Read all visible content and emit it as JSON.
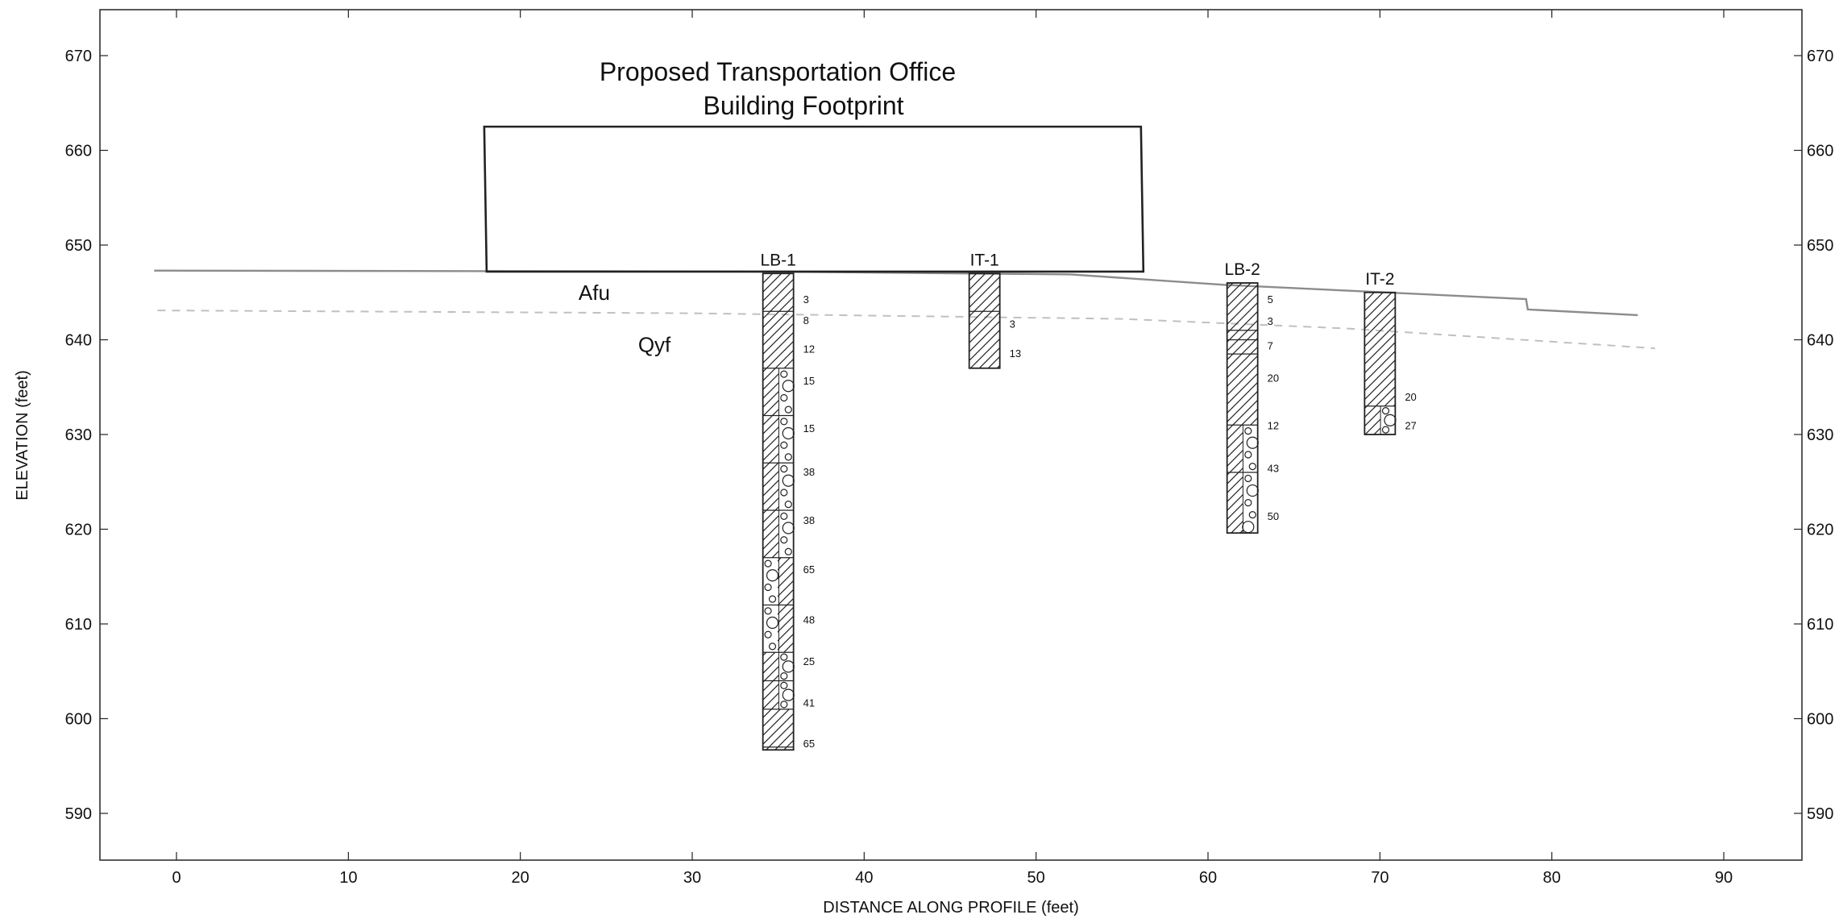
{
  "chart_data": {
    "type": "cross-section",
    "xlabel": "DISTANCE ALONG PROFILE (feet)",
    "ylabel": "ELEVATION (feet)",
    "xlim": [
      -4.5,
      94.5
    ],
    "ylim": [
      585,
      675
    ],
    "x_ticks": [
      0,
      10,
      20,
      30,
      40,
      50,
      60,
      70,
      80,
      90
    ],
    "y_ticks": [
      590,
      600,
      610,
      620,
      630,
      640,
      650,
      660,
      670
    ],
    "footprint": {
      "title_line1": "Proposed Transportation Office",
      "title_line2": "Building Footprint",
      "x_start": 17.9,
      "x_end": 56.1,
      "elev_top": 662.5,
      "elev_bottom": 647.2
    },
    "ground_surface": [
      [
        -1.3,
        647.3
      ],
      [
        34.5,
        647.2
      ],
      [
        52,
        646.9
      ],
      [
        61,
        645.8
      ],
      [
        78.5,
        644.3
      ],
      [
        78.6,
        643.2
      ],
      [
        85,
        642.6
      ]
    ],
    "contact_line": [
      [
        -1.1,
        643.1
      ],
      [
        30,
        642.8
      ],
      [
        55,
        642.2
      ],
      [
        68,
        641.2
      ],
      [
        86,
        639.1
      ]
    ],
    "units": [
      {
        "label": "Afu",
        "x": 24.3,
        "y": 645
      },
      {
        "label": "Qyf",
        "x": 27.8,
        "y": 639.5
      }
    ],
    "borings": [
      {
        "name": "LB-1",
        "x": 35.0,
        "top": 647.0,
        "bottom": 596.7,
        "layers": [
          {
            "top": 647.0,
            "bottom": 643.0,
            "pattern": "hatch"
          },
          {
            "top": 643.0,
            "bottom": 637.0,
            "pattern": "hatch"
          },
          {
            "top": 637.0,
            "bottom": 632.0,
            "pattern": "hatch-gravel"
          },
          {
            "top": 632.0,
            "bottom": 627.0,
            "pattern": "hatch-gravel"
          },
          {
            "top": 627.0,
            "bottom": 622.0,
            "pattern": "hatch-gravel"
          },
          {
            "top": 622.0,
            "bottom": 617.0,
            "pattern": "hatch-gravel"
          },
          {
            "top": 617.0,
            "bottom": 612.0,
            "pattern": "gravel-hatch"
          },
          {
            "top": 612.0,
            "bottom": 607.0,
            "pattern": "gravel-hatch"
          },
          {
            "top": 607.0,
            "bottom": 604.0,
            "pattern": "hatch-gravel"
          },
          {
            "top": 604.0,
            "bottom": 601.0,
            "pattern": "hatch-gravel"
          },
          {
            "top": 601.0,
            "bottom": 597.0,
            "pattern": "hatch"
          },
          {
            "top": 597.0,
            "bottom": 596.7,
            "pattern": "hatch"
          }
        ],
        "samples": [
          {
            "elev": 644.2,
            "blows": "3"
          },
          {
            "elev": 642.0,
            "blows": "8"
          },
          {
            "elev": 639.0,
            "blows": "12"
          },
          {
            "elev": 635.6,
            "blows": "15"
          },
          {
            "elev": 630.6,
            "blows": "15"
          },
          {
            "elev": 626.0,
            "blows": "38"
          },
          {
            "elev": 620.9,
            "blows": "38"
          },
          {
            "elev": 615.7,
            "blows": "65"
          },
          {
            "elev": 610.4,
            "blows": "48"
          },
          {
            "elev": 606.0,
            "blows": "25"
          },
          {
            "elev": 601.6,
            "blows": "41"
          },
          {
            "elev": 597.3,
            "blows": "65"
          }
        ]
      },
      {
        "name": "IT-1",
        "x": 47.0,
        "top": 647.0,
        "bottom": 637.0,
        "layers": [
          {
            "top": 647.0,
            "bottom": 643.0,
            "pattern": "hatch"
          },
          {
            "top": 643.0,
            "bottom": 637.0,
            "pattern": "hatch"
          }
        ],
        "samples": [
          {
            "elev": 641.6,
            "blows": "3"
          },
          {
            "elev": 638.5,
            "blows": "13"
          }
        ]
      },
      {
        "name": "LB-2",
        "x": 62.0,
        "top": 646.0,
        "bottom": 619.6,
        "layers": [
          {
            "top": 646.0,
            "bottom": 641.0,
            "pattern": "hatch"
          },
          {
            "top": 641.0,
            "bottom": 640.0,
            "pattern": "hatch"
          },
          {
            "top": 640.0,
            "bottom": 638.5,
            "pattern": "hatch"
          },
          {
            "top": 638.5,
            "bottom": 631.0,
            "pattern": "hatch"
          },
          {
            "top": 631.0,
            "bottom": 626.0,
            "pattern": "hatch-gravel"
          },
          {
            "top": 626.0,
            "bottom": 619.6,
            "pattern": "hatch-gravel"
          }
        ],
        "samples": [
          {
            "elev": 644.2,
            "blows": "5"
          },
          {
            "elev": 641.9,
            "blows": "3"
          },
          {
            "elev": 639.3,
            "blows": "7"
          },
          {
            "elev": 635.9,
            "blows": "20"
          },
          {
            "elev": 630.9,
            "blows": "12"
          },
          {
            "elev": 626.4,
            "blows": "43"
          },
          {
            "elev": 621.3,
            "blows": "50"
          }
        ]
      },
      {
        "name": "IT-2",
        "x": 70.0,
        "top": 645.0,
        "bottom": 630.0,
        "layers": [
          {
            "top": 645.0,
            "bottom": 633.0,
            "pattern": "hatch"
          },
          {
            "top": 633.0,
            "bottom": 630.0,
            "pattern": "hatch-gravel"
          }
        ],
        "samples": [
          {
            "elev": 633.9,
            "blows": "20"
          },
          {
            "elev": 630.9,
            "blows": "27"
          }
        ]
      }
    ],
    "colors": {
      "frame": "#222222",
      "ground": "#8c8c8c",
      "contact": "#c0c0c0",
      "boring": "#222222"
    }
  }
}
